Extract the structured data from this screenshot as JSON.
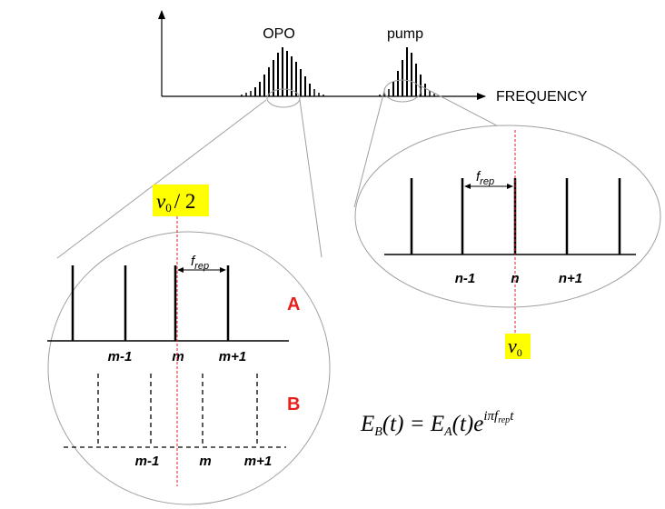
{
  "spectrum": {
    "opo_label": "OPO",
    "pump_label": "pump",
    "axis_label": "FREQUENCY"
  },
  "left_zoom": {
    "nu_label_base": "ν",
    "nu_label_sub": "0",
    "nu_label_suffix": "/ 2",
    "frep_label_base": "f",
    "frep_label_sub": "rep",
    "comb_a_label": "A",
    "comb_b_label": "B",
    "a_tick_labels": [
      "m-1",
      "m",
      "m+1"
    ],
    "b_tick_labels": [
      "m-1",
      "m",
      "m+1"
    ]
  },
  "right_zoom": {
    "frep_label_base": "f",
    "frep_label_sub": "rep",
    "tick_labels": [
      "n-1",
      "n",
      "n+1"
    ],
    "nu_label_base": "ν",
    "nu_label_sub": "0"
  },
  "equation": {
    "lhs_base": "E",
    "lhs_sub": "B",
    "lhs_arg": "(t) = ",
    "rhs_base": "E",
    "rhs_sub": "A",
    "rhs_arg": "(t)e",
    "exp_main": "iπf",
    "exp_sub": "rep",
    "exp_tail": "t"
  },
  "colors": {
    "label_red": "#e8201c",
    "highlight_yellow": "#ffff00",
    "center_line_red": "#e8201c",
    "outline_gray": "#a0a0a0"
  }
}
